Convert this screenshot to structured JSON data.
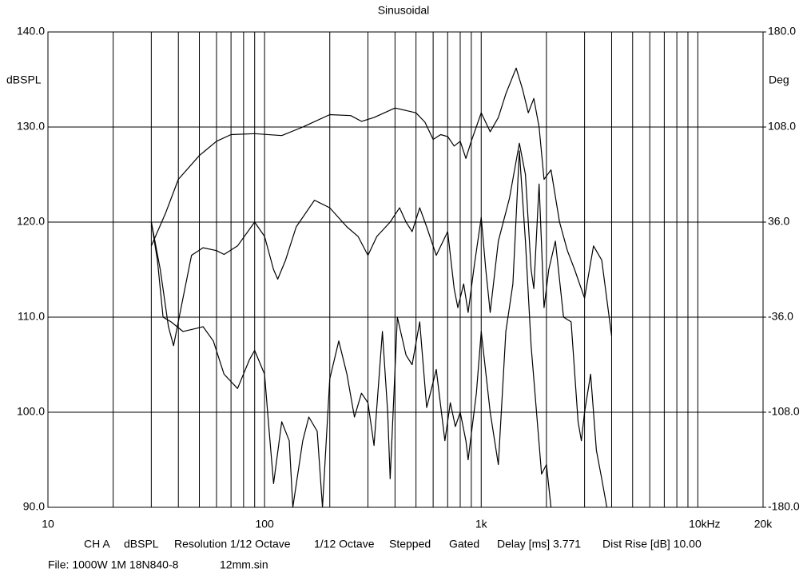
{
  "chart_data": {
    "type": "line",
    "title": "Sinusoidal",
    "y_label": "dBSPL",
    "y2_label": "Deg",
    "x_unit": "Hz",
    "log_x": true,
    "grid": true,
    "xlim": [
      10,
      20000
    ],
    "xticks": [
      10,
      100,
      {
        "value": 1000,
        "label": "1k"
      },
      {
        "value": 10000,
        "label": "10k"
      },
      {
        "value": 20000,
        "label": "20k"
      }
    ],
    "ylim": [
      90,
      140
    ],
    "yticks": [
      {
        "value": 90,
        "label": "90.0"
      },
      {
        "value": 100,
        "label": "100.0"
      },
      {
        "value": 110,
        "label": "110.0"
      },
      {
        "value": 120,
        "label": "120.0"
      },
      {
        "value": 130,
        "label": "130.0"
      },
      {
        "value": 140,
        "label": "140.0"
      }
    ],
    "y2lim": [
      -180,
      180
    ],
    "y2ticks": [
      {
        "value": -180,
        "label": "-180.0"
      },
      {
        "value": -108,
        "label": "-108.0"
      },
      {
        "value": -36,
        "label": "-36.0"
      },
      {
        "value": 36,
        "label": "36.0"
      },
      {
        "value": 108,
        "label": "108.0"
      },
      {
        "value": 180,
        "label": "180.0"
      }
    ],
    "series": [
      {
        "color": "#000000",
        "x": [
          30,
          35,
          40,
          50,
          60,
          70,
          90,
          120,
          150,
          200,
          250,
          280,
          320,
          400,
          500,
          550,
          600,
          650,
          700,
          750,
          800,
          850,
          900,
          1000,
          1100,
          1200,
          1300,
          1450,
          1550,
          1650,
          1750,
          1850,
          1950,
          2100,
          2300,
          2500,
          2700,
          3000,
          3300,
          3600,
          4000
        ],
        "values": [
          117.5,
          121,
          124.5,
          127,
          128.5,
          129.2,
          129.3,
          129.1,
          130,
          131.3,
          131.2,
          130.6,
          131,
          132,
          131.5,
          130.5,
          128.7,
          129.2,
          129,
          128,
          128.5,
          126.7,
          128.5,
          131.5,
          129.5,
          131,
          133.5,
          136.2,
          134,
          131.5,
          133,
          130,
          124.5,
          125.5,
          120,
          117,
          115,
          112,
          117.5,
          116,
          108
        ]
      },
      {
        "color": "#000000",
        "x": [
          30,
          33,
          36,
          38,
          42,
          46,
          52,
          60,
          65,
          75,
          90,
          100,
          110,
          115,
          125,
          140,
          170,
          200,
          240,
          270,
          300,
          330,
          380,
          420,
          450,
          480,
          520,
          560,
          620,
          700,
          750,
          780,
          830,
          870,
          930,
          1000,
          1050,
          1100,
          1200,
          1350,
          1500,
          1600,
          1700,
          1750,
          1850,
          1950,
          2050,
          2200,
          2400,
          2600,
          2800,
          2900,
          3000,
          3200,
          3400,
          3600,
          3800
        ],
        "values": [
          120,
          115,
          109,
          107,
          112,
          116.5,
          117.3,
          117,
          116.6,
          117.5,
          120,
          118.5,
          115,
          114,
          116,
          119.5,
          122.3,
          121.5,
          119.5,
          118.5,
          116.5,
          118.5,
          120,
          121.5,
          120,
          119,
          121.5,
          119.5,
          116.5,
          119,
          113,
          111,
          113.5,
          110.5,
          115.5,
          120.5,
          115,
          110.5,
          118,
          122.5,
          128.3,
          125,
          115,
          113,
          124,
          111,
          115,
          118,
          110,
          109.5,
          99,
          97,
          100,
          104,
          96,
          93,
          90
        ]
      },
      {
        "color": "#000000",
        "x": [
          30,
          32,
          34,
          37,
          42,
          48,
          52,
          58,
          65,
          75,
          85,
          90,
          100,
          105,
          110,
          120,
          130,
          135,
          150,
          160,
          175,
          185,
          200,
          220,
          240,
          260,
          280,
          300,
          320,
          350,
          370,
          380,
          410,
          450,
          480,
          520,
          560,
          590,
          620,
          680,
          720,
          760,
          800,
          850,
          870,
          950,
          1000,
          1100,
          1200,
          1300,
          1400,
          1500,
          1600,
          1700,
          1800,
          1900,
          2000,
          2100
        ],
        "values": [
          120,
          116,
          110,
          109.5,
          108.5,
          108.8,
          109,
          107.5,
          104,
          102.5,
          105.5,
          106.5,
          104,
          98,
          92.5,
          99,
          97,
          90,
          97,
          99.5,
          98,
          90,
          103.5,
          107.5,
          104,
          99.5,
          102,
          101,
          96.5,
          108.5,
          100,
          93,
          110,
          106,
          105,
          109.5,
          100.5,
          102.5,
          104.5,
          97,
          101,
          98.5,
          100,
          97,
          95,
          102,
          108.5,
          100,
          94.5,
          108.5,
          113.5,
          127.5,
          118,
          107,
          100,
          93.5,
          94.5,
          90
        ]
      }
    ],
    "footer": [
      "CH A",
      "dBSPL",
      "Resolution 1/12 Octave",
      "1/12 Octave",
      "Stepped",
      "Gated",
      "Delay [ms] 3.771",
      "Dist Rise [dB] 10.00"
    ],
    "file": [
      "File: 1000W 1M 18N840-8",
      "12mm.sin"
    ]
  }
}
